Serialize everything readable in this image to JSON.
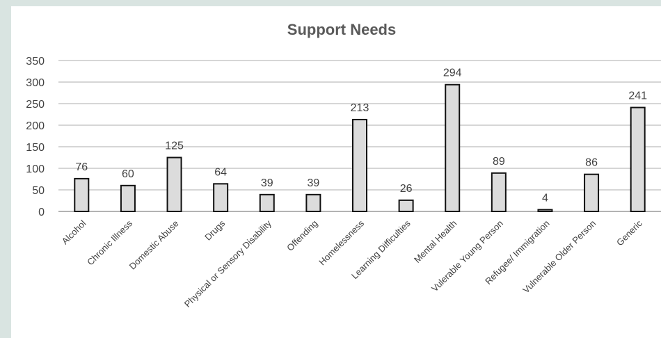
{
  "chart_data": {
    "type": "bar",
    "title": "Support Needs",
    "categories": [
      "Alcohol",
      "Chronic Illness",
      "Domestic Abuse",
      "Drugs",
      "Physical or Sensory Disability",
      "Offending",
      "Homelessness",
      "Learning Difficulties",
      "Mental Health",
      "Vulerable Young Person",
      "Refugee/ Immigration",
      "Vulnerable Older Person",
      "Generic"
    ],
    "values": [
      76,
      60,
      125,
      64,
      39,
      39,
      213,
      26,
      294,
      89,
      4,
      86,
      241
    ],
    "ylim": [
      0,
      350
    ],
    "yticks": [
      0,
      50,
      100,
      150,
      200,
      250,
      300,
      350
    ],
    "grid": true,
    "data_labels": true,
    "colors": {
      "bar_fill": "#dcdcdc",
      "bar_stroke": "#111111",
      "panel_bg": "#ffffff",
      "page_bg": "#d9e4e1"
    }
  }
}
